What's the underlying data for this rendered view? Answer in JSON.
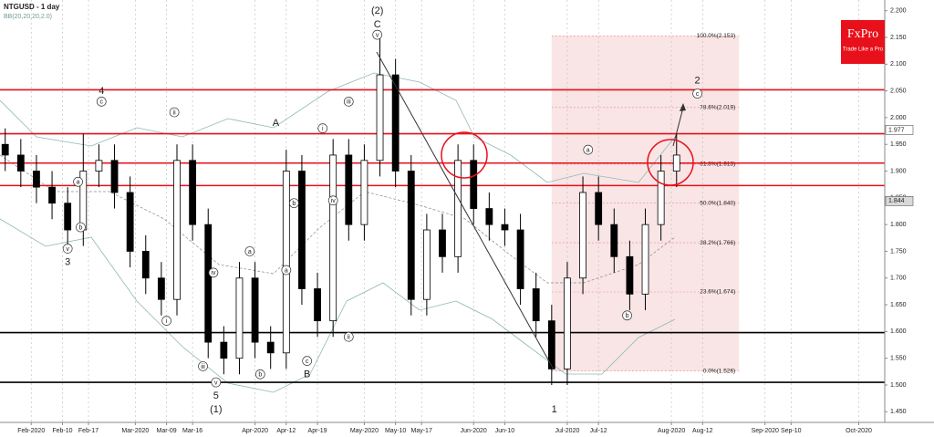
{
  "chart_data": {
    "type": "candlestick",
    "title": "NTGUSD - 1 day",
    "subtitle": "BB(20,20,20,2.0)",
    "logo": {
      "brand": "FxPro",
      "tagline": "Trade Like a Pro"
    },
    "x": [
      1,
      4,
      7,
      10,
      13,
      16,
      19,
      22,
      25,
      28,
      31,
      34,
      37,
      40,
      43,
      46,
      49,
      52,
      55,
      58,
      61,
      64,
      67,
      70,
      73,
      76,
      79,
      82,
      85,
      88,
      91,
      94,
      97,
      100,
      103,
      106,
      109,
      112,
      115,
      118,
      121,
      124,
      127,
      130
    ],
    "open": [
      1.95,
      1.93,
      1.9,
      1.87,
      1.84,
      1.79,
      1.9,
      1.92,
      1.86,
      1.75,
      1.7,
      1.66,
      1.92,
      1.8,
      1.58,
      1.55,
      1.7,
      1.58,
      1.56,
      1.9,
      1.68,
      1.62,
      1.93,
      1.8,
      1.92,
      2.08,
      1.9,
      1.66,
      1.79,
      1.74,
      1.92,
      1.83,
      1.8,
      1.79,
      1.68,
      1.62,
      1.53,
      1.7,
      1.86,
      1.8,
      1.74,
      1.67,
      1.8,
      1.9
    ],
    "high": [
      1.98,
      1.96,
      1.93,
      1.9,
      1.87,
      1.97,
      1.95,
      1.95,
      1.89,
      1.78,
      1.73,
      1.95,
      1.95,
      1.83,
      1.61,
      1.73,
      1.73,
      1.61,
      1.94,
      1.93,
      1.71,
      1.96,
      1.96,
      1.95,
      2.15,
      2.11,
      1.93,
      1.82,
      1.82,
      1.95,
      1.95,
      1.86,
      1.83,
      1.82,
      1.71,
      1.65,
      1.73,
      1.89,
      1.89,
      1.83,
      1.77,
      1.83,
      1.93,
      1.97
    ],
    "low": [
      1.9,
      1.87,
      1.84,
      1.81,
      1.76,
      1.76,
      1.87,
      1.83,
      1.72,
      1.67,
      1.63,
      1.63,
      1.77,
      1.55,
      1.52,
      1.52,
      1.55,
      1.53,
      1.53,
      1.65,
      1.59,
      1.59,
      1.77,
      1.77,
      1.89,
      1.87,
      1.63,
      1.63,
      1.71,
      1.71,
      1.8,
      1.77,
      1.76,
      1.65,
      1.59,
      1.5,
      1.5,
      1.67,
      1.77,
      1.71,
      1.64,
      1.64,
      1.77,
      1.87
    ],
    "close": [
      1.93,
      1.9,
      1.87,
      1.84,
      1.79,
      1.9,
      1.92,
      1.86,
      1.75,
      1.7,
      1.66,
      1.92,
      1.8,
      1.58,
      1.55,
      1.7,
      1.58,
      1.56,
      1.9,
      1.68,
      1.62,
      1.93,
      1.8,
      1.92,
      2.08,
      1.9,
      1.66,
      1.79,
      1.74,
      1.92,
      1.83,
      1.8,
      1.79,
      1.68,
      1.62,
      1.53,
      1.7,
      1.86,
      1.8,
      1.74,
      1.67,
      1.8,
      1.9,
      1.93
    ],
    "xlim": [
      0,
      170
    ],
    "xticks": [
      {
        "value": 6,
        "label": "Feb-2020"
      },
      {
        "value": 12,
        "label": "Feb-10"
      },
      {
        "value": 17,
        "label": "Feb-17"
      },
      {
        "value": 26,
        "label": "Mar-2020"
      },
      {
        "value": 32,
        "label": "Mar-09"
      },
      {
        "value": 37,
        "label": "Mar-16"
      },
      {
        "value": 49,
        "label": "Apr-2020"
      },
      {
        "value": 55,
        "label": "Apr-12"
      },
      {
        "value": 61,
        "label": "Apr-19"
      },
      {
        "value": 70,
        "label": "May-2020"
      },
      {
        "value": 76,
        "label": "May-10"
      },
      {
        "value": 81,
        "label": "May-17"
      },
      {
        "value": 91,
        "label": "Jun-2020"
      },
      {
        "value": 97,
        "label": "Jun-10"
      },
      {
        "value": 109,
        "label": "Jul-2020"
      },
      {
        "value": 115,
        "label": "Jul-12"
      },
      {
        "value": 129,
        "label": "Aug-2020"
      },
      {
        "value": 135,
        "label": "Aug-12"
      },
      {
        "value": 147,
        "label": "Sep-2020"
      },
      {
        "value": 152,
        "label": "Sep-10"
      },
      {
        "value": 165,
        "label": "Oct-2020"
      }
    ],
    "ylim": [
      1.43,
      2.22
    ],
    "yticks": [
      {
        "value": 1.45,
        "label": "1.450"
      },
      {
        "value": 1.5,
        "label": "1.500"
      },
      {
        "value": 1.55,
        "label": "1.550"
      },
      {
        "value": 1.6,
        "label": "1.600"
      },
      {
        "value": 1.65,
        "label": "1.650"
      },
      {
        "value": 1.7,
        "label": "1.700"
      },
      {
        "value": 1.75,
        "label": "1.750"
      },
      {
        "value": 1.8,
        "label": "1.800"
      },
      {
        "value": 1.85,
        "label": "1.850"
      },
      {
        "value": 1.9,
        "label": "1.900"
      },
      {
        "value": 1.95,
        "label": "1.950"
      },
      {
        "value": 2.0,
        "label": "2.000"
      },
      {
        "value": 2.05,
        "label": "2.050"
      },
      {
        "value": 2.1,
        "label": "2.100"
      },
      {
        "value": 2.15,
        "label": "2.150"
      },
      {
        "value": 2.2,
        "label": "2.200"
      }
    ],
    "grid": true,
    "bull_color": "#ffffff",
    "bear_color": "#000000",
    "hlines": [
      {
        "value": 2.052,
        "color": "#e8101a"
      },
      {
        "value": 1.97,
        "color": "#e8101a"
      },
      {
        "value": 1.915,
        "color": "#e8101a"
      },
      {
        "value": 1.873,
        "color": "#e8101a"
      },
      {
        "value": 1.598,
        "color": "#000000"
      },
      {
        "value": 1.505,
        "color": "#000000"
      }
    ],
    "price_tags": [
      {
        "value": 1.977,
        "color": "#ffffff"
      },
      {
        "value": 1.844,
        "color": "#d9d9d9"
      }
    ],
    "fib": {
      "x_start": 106,
      "x_end": 142,
      "color": "#f7dede",
      "levels": [
        {
          "value": 2.153,
          "label": "100.0%(2.153)"
        },
        {
          "value": 2.019,
          "label": "78.6%(2.019)"
        },
        {
          "value": 1.913,
          "label": "61.8%(1.913)"
        },
        {
          "value": 1.84,
          "label": "50.0%(1.840)"
        },
        {
          "value": 1.766,
          "label": "38.2%(1.766)"
        },
        {
          "value": 1.674,
          "label": "23.6%(1.674)"
        },
        {
          "value": 1.526,
          "label": "0.0%(1.526)"
        }
      ]
    },
    "annotations": [
      {
        "text": "(2)",
        "x": 72.5,
        "y": 2.2
      },
      {
        "text": "C",
        "x": 72.5,
        "y": 2.175
      },
      {
        "text": "v",
        "x": 72.5,
        "y": 2.155,
        "circled": true
      },
      {
        "text": "4",
        "x": 19.5,
        "y": 2.05
      },
      {
        "text": "c",
        "x": 19.5,
        "y": 2.03,
        "circled": true
      },
      {
        "text": "3",
        "x": 13,
        "y": 1.73
      },
      {
        "text": "v",
        "x": 13,
        "y": 1.755,
        "circled": true
      },
      {
        "text": "A",
        "x": 53,
        "y": 1.99
      },
      {
        "text": "B",
        "x": 59,
        "y": 1.52
      },
      {
        "text": "c",
        "x": 59,
        "y": 1.545,
        "circled": true
      },
      {
        "text": "5",
        "x": 41.5,
        "y": 1.48
      },
      {
        "text": "(1)",
        "x": 41.5,
        "y": 1.455
      },
      {
        "text": "v",
        "x": 41.5,
        "y": 1.505,
        "circled": true
      },
      {
        "text": "1",
        "x": 106.5,
        "y": 1.455
      },
      {
        "text": "2",
        "x": 134,
        "y": 2.07
      },
      {
        "text": "c",
        "x": 134,
        "y": 2.045,
        "circled": true
      },
      {
        "text": "a",
        "x": 113,
        "y": 1.94,
        "circled": true
      },
      {
        "text": "b",
        "x": 120.5,
        "y": 1.63,
        "circled": true
      },
      {
        "text": "iii",
        "x": 67,
        "y": 2.03,
        "circled": true
      },
      {
        "text": "i",
        "x": 62,
        "y": 1.98,
        "circled": true
      },
      {
        "text": "iv",
        "x": 64,
        "y": 1.845,
        "circled": true
      },
      {
        "text": "ii",
        "x": 67,
        "y": 1.59,
        "circled": true
      },
      {
        "text": "ii",
        "x": 33.5,
        "y": 2.01,
        "circled": true
      },
      {
        "text": "i",
        "x": 32,
        "y": 1.62,
        "circled": true
      },
      {
        "text": "iii",
        "x": 39,
        "y": 1.535,
        "circled": true
      },
      {
        "text": "iv",
        "x": 41,
        "y": 1.71,
        "circled": true
      },
      {
        "text": "a",
        "x": 48,
        "y": 1.75,
        "circled": true
      },
      {
        "text": "b",
        "x": 50,
        "y": 1.52,
        "circled": true
      },
      {
        "text": "a",
        "x": 55,
        "y": 1.715,
        "circled": true
      },
      {
        "text": "b",
        "x": 56.5,
        "y": 1.84,
        "circled": true
      },
      {
        "text": "a",
        "x": 15,
        "y": 1.88,
        "circled": true
      },
      {
        "text": "b",
        "x": 15.5,
        "y": 1.795,
        "circled": true
      }
    ]
  }
}
